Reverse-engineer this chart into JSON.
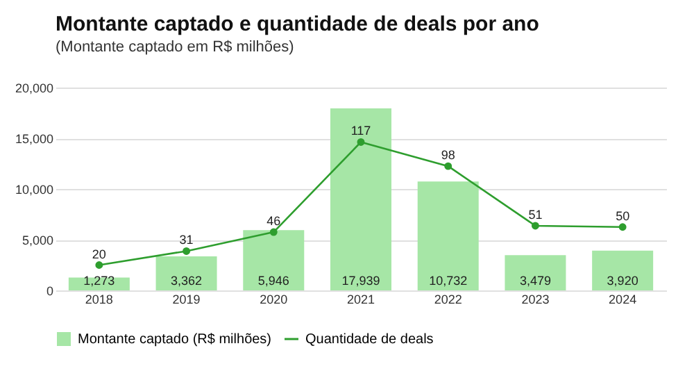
{
  "chart_data": {
    "type": "bar",
    "title": "Montante captado e quantidade de deals por ano",
    "subtitle": "(Montante captado em R$ milhões)",
    "categories": [
      "2018",
      "2019",
      "2020",
      "2021",
      "2022",
      "2023",
      "2024"
    ],
    "series": [
      {
        "name": "Montante captado (R$ milhões)",
        "color": "#a6e6a6",
        "values": [
          1273,
          3362,
          5946,
          17939,
          10732,
          3479,
          3920
        ],
        "value_labels": [
          "1,273",
          "3,362",
          "5,946",
          "17,939",
          "10,732",
          "3,479",
          "3,920"
        ]
      },
      {
        "name": "Quantidade de deals",
        "type": "line",
        "axis": "y2",
        "color": "#2e9e2e",
        "values": [
          20,
          31,
          46,
          117,
          98,
          51,
          50
        ]
      }
    ],
    "ylim": [
      0,
      20000
    ],
    "yticks": [
      0,
      {
        "value": 5000,
        "label": "5,000"
      },
      {
        "value": 10000,
        "label": "10,000"
      },
      {
        "value": 15000,
        "label": "15,000"
      },
      {
        "value": 20000,
        "label": "20,000"
      }
    ],
    "y2lim": [
      0,
      160
    ],
    "grid": "y",
    "legend": "bottom",
    "data_labels": true,
    "marker": "circle"
  }
}
